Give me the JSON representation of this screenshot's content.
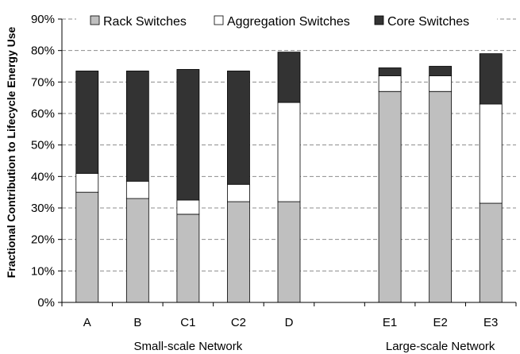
{
  "chart_data": {
    "type": "bar",
    "stacked": true,
    "ylabel": "Fractional Contribution to Lifecycle Energy Use",
    "ylim": [
      0,
      90
    ],
    "yticks": [
      0,
      10,
      20,
      30,
      40,
      50,
      60,
      70,
      80,
      90
    ],
    "ytick_suffix": "%",
    "grid": true,
    "legend_position": "top",
    "categories": [
      "A",
      "B",
      "C1",
      "C2",
      "D",
      "",
      "E1",
      "E2",
      "E3"
    ],
    "groups": [
      {
        "label": "Small-scale Network",
        "categories": [
          "A",
          "B",
          "C1",
          "C2",
          "D"
        ]
      },
      {
        "label": "Large-scale Network",
        "categories": [
          "E1",
          "E2",
          "E3"
        ]
      }
    ],
    "series": [
      {
        "name": "Rack Switches",
        "color": "#bfbfbf",
        "values": [
          35,
          33,
          28,
          32,
          32,
          null,
          67,
          67,
          31.5
        ]
      },
      {
        "name": "Aggregation Switches",
        "color": "#ffffff",
        "values": [
          6,
          5.5,
          4.5,
          5.5,
          31.5,
          null,
          5,
          5,
          31.5
        ]
      },
      {
        "name": "Core Switches",
        "color": "#333333",
        "values": [
          32.5,
          35,
          41.5,
          36,
          16,
          null,
          2.5,
          3,
          16
        ]
      }
    ]
  }
}
